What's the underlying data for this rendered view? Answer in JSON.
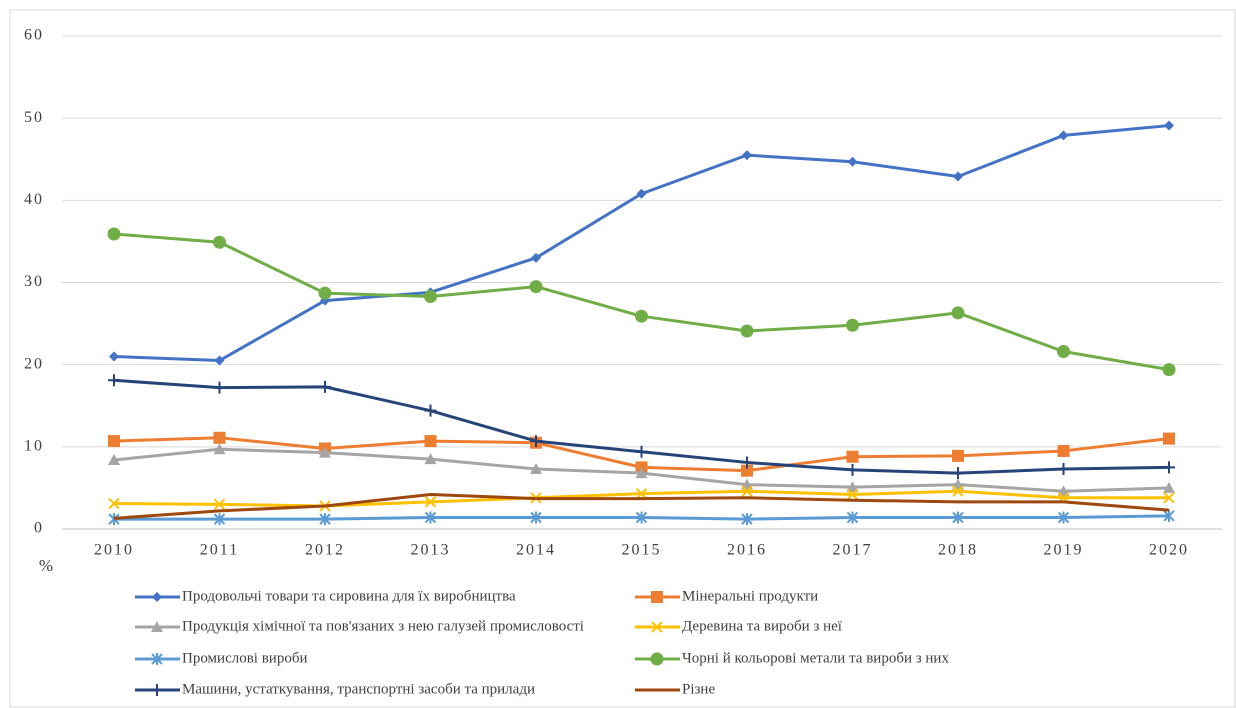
{
  "chart_data": {
    "type": "line",
    "axis_label": "%",
    "categories": [
      "2010",
      "2011",
      "2012",
      "2013",
      "2014",
      "2015",
      "2016",
      "2017",
      "2018",
      "2019",
      "2020"
    ],
    "ylim": [
      0,
      60
    ],
    "yticks": [
      0,
      10,
      20,
      30,
      40,
      50,
      60
    ],
    "grid": true,
    "legend": "bottom",
    "series": [
      {
        "name": "Продовольчі товари та сировина для їх виробництва",
        "color": "#4472c4",
        "marker": "diamond",
        "values": [
          21,
          20.5,
          27.8,
          28.8,
          33,
          40.8,
          45.5,
          44.7,
          42.9,
          47.9,
          49.1
        ]
      },
      {
        "name": "Мінеральні продукти",
        "color": "#ed7d31",
        "marker": "square",
        "values": [
          10.7,
          11.1,
          9.8,
          10.7,
          10.5,
          7.5,
          7.1,
          8.8,
          8.9,
          9.5,
          11
        ]
      },
      {
        "name": "Продукція хімічної та пов'язаних  з нею галузей промисловості",
        "color": "#a5a5a5",
        "marker": "triangle",
        "values": [
          8.4,
          9.7,
          9.3,
          8.5,
          7.3,
          6.8,
          5.4,
          5.1,
          5.4,
          4.6,
          5
        ]
      },
      {
        "name": "Деревина та вироби з неї",
        "color": "#ffc000",
        "marker": "x",
        "values": [
          3.1,
          3.0,
          2.8,
          3.3,
          3.8,
          4.3,
          4.6,
          4.2,
          4.6,
          3.8,
          3.8
        ]
      },
      {
        "name": "Промислові вироби",
        "color": "#5b9bd5",
        "marker": "star",
        "values": [
          1.2,
          1.2,
          1.2,
          1.4,
          1.4,
          1.4,
          1.2,
          1.4,
          1.4,
          1.4,
          1.6
        ]
      },
      {
        "name": "Чорні й кольорові метали та вироби з них",
        "color": "#70ad47",
        "marker": "circle",
        "values": [
          35.9,
          34.9,
          28.7,
          28.3,
          29.5,
          25.9,
          24.1,
          24.8,
          26.3,
          21.6,
          19.4
        ]
      },
      {
        "name": "Машини,  устаткування,  транспортні  засоби та  прилади",
        "color": "#264478",
        "marker": "plus",
        "values": [
          18.1,
          17.2,
          17.3,
          14.4,
          10.7,
          9.4,
          8.1,
          7.2,
          6.8,
          7.3,
          7.5
        ]
      },
      {
        "name": "Різне",
        "color": "#9e480e",
        "marker": "none",
        "values": [
          1.3,
          2.2,
          2.8,
          4.2,
          3.7,
          3.7,
          3.8,
          3.5,
          3.3,
          3.3,
          2.3
        ]
      }
    ]
  }
}
